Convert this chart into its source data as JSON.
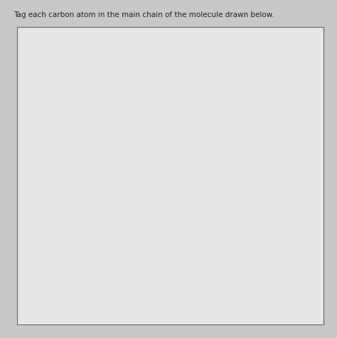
{
  "title": "Tag each carbon atom in the main chain of the molecule drawn below.",
  "bg_outer": "#c8c8c8",
  "bg_title": "#e8e6e6",
  "bg_box": "#e8e6e6",
  "line_color": "#222222",
  "text_color": "#222222",
  "font_size": 9.0,
  "title_font_size": 7.5
}
